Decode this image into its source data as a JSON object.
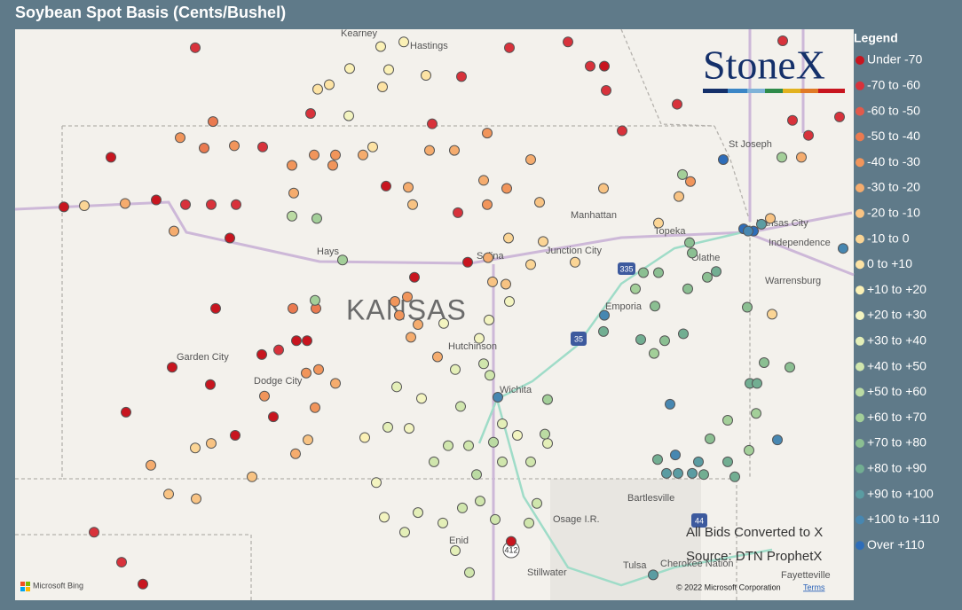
{
  "title": "Soybean Spot Basis (Cents/Bushel)",
  "logo": "StoneX",
  "legend": {
    "title": "Legend",
    "items": [
      {
        "label": "Under -70",
        "color": "#c8151f"
      },
      {
        "label": "-70 to -60",
        "color": "#d8323b"
      },
      {
        "label": "-60 to -50",
        "color": "#e25a4b"
      },
      {
        "label": "-50 to -40",
        "color": "#ea7a50"
      },
      {
        "label": "-40 to -30",
        "color": "#f1955b"
      },
      {
        "label": "-30 to -20",
        "color": "#f5ac6e"
      },
      {
        "label": "-20 to -10",
        "color": "#f8c383"
      },
      {
        "label": "-10 to 0",
        "color": "#fbd595"
      },
      {
        "label": "0 to +10",
        "color": "#fde3a4"
      },
      {
        "label": "+10 to +20",
        "color": "#fbf1b6"
      },
      {
        "label": "+20 to +30",
        "color": "#f3f4c0"
      },
      {
        "label": "+30 to +40",
        "color": "#e4efb8"
      },
      {
        "label": "+40 to +50",
        "color": "#d0e6ad"
      },
      {
        "label": "+50 to +60",
        "color": "#bbdba3"
      },
      {
        "label": "+60 to +70",
        "color": "#a3cf99"
      },
      {
        "label": "+70 to +80",
        "color": "#8bbf92"
      },
      {
        "label": "+80 to +90",
        "color": "#72ae92"
      },
      {
        "label": "+90 to +100",
        "color": "#5b9ca2"
      },
      {
        "label": "+100 to +110",
        "color": "#4787b1"
      },
      {
        "label": "Over +110",
        "color": "#2e6db9"
      }
    ]
  },
  "lonlim": [
    -102.6,
    -93.15
  ],
  "latlim": [
    35.85,
    40.8
  ],
  "points": [
    [
      -102.05,
      39.26,
      0
    ],
    [
      -101.52,
      39.69,
      0
    ],
    [
      -101.01,
      39.32,
      0
    ],
    [
      -100.68,
      39.28,
      1
    ],
    [
      -100.39,
      39.28,
      1
    ],
    [
      -100.11,
      39.28,
      1
    ],
    [
      -100.18,
      38.99,
      0
    ],
    [
      -100.34,
      38.38,
      0
    ],
    [
      -100.83,
      37.87,
      0
    ],
    [
      -100.4,
      37.72,
      0
    ],
    [
      -99.82,
      37.98,
      0
    ],
    [
      -99.43,
      38.1,
      0
    ],
    [
      -99.31,
      38.1,
      0
    ],
    [
      -99.63,
      38.02,
      1
    ],
    [
      -101.35,
      37.48,
      0
    ],
    [
      -100.12,
      37.28,
      0
    ],
    [
      -99.69,
      37.44,
      0
    ],
    [
      -101.71,
      36.44,
      1
    ],
    [
      -101.4,
      36.18,
      1
    ],
    [
      -101.16,
      35.99,
      0
    ],
    [
      -100.57,
      40.64,
      1
    ],
    [
      -99.81,
      39.78,
      1
    ],
    [
      -99.27,
      40.07,
      1
    ],
    [
      -98.42,
      39.44,
      0
    ],
    [
      -98.1,
      38.65,
      0
    ],
    [
      -97.9,
      39.98,
      1
    ],
    [
      -97.61,
      39.21,
      1
    ],
    [
      -97.5,
      38.78,
      0
    ],
    [
      -97.57,
      40.39,
      1
    ],
    [
      -97.03,
      40.64,
      1
    ],
    [
      -96.37,
      40.69,
      1
    ],
    [
      -95.94,
      40.27,
      1
    ],
    [
      -95.76,
      39.92,
      1
    ],
    [
      -95.14,
      40.15,
      1
    ],
    [
      -93.95,
      40.7,
      1
    ],
    [
      -93.66,
      39.88,
      1
    ],
    [
      -93.84,
      40.01,
      1
    ],
    [
      -93.31,
      40.04,
      1
    ],
    [
      -97.01,
      36.36,
      0
    ],
    [
      -96.12,
      40.48,
      1
    ],
    [
      -95.96,
      40.48,
      0
    ],
    [
      -100.37,
      40.0,
      3
    ],
    [
      -100.74,
      39.86,
      4
    ],
    [
      -100.47,
      39.77,
      3
    ],
    [
      -100.13,
      39.79,
      4
    ],
    [
      -99.48,
      39.62,
      4
    ],
    [
      -99.23,
      39.71,
      4
    ],
    [
      -98.99,
      39.71,
      4
    ],
    [
      -98.68,
      39.71,
      5
    ],
    [
      -99.02,
      39.62,
      4
    ],
    [
      -99.46,
      39.38,
      5
    ],
    [
      -98.17,
      39.43,
      5
    ],
    [
      -97.93,
      39.75,
      5
    ],
    [
      -97.65,
      39.75,
      5
    ],
    [
      -97.28,
      39.9,
      4
    ],
    [
      -97.28,
      39.28,
      4
    ],
    [
      -97.06,
      39.42,
      4
    ],
    [
      -97.32,
      39.49,
      5
    ],
    [
      -96.79,
      39.67,
      5
    ],
    [
      -98.12,
      39.28,
      6
    ],
    [
      -96.69,
      39.3,
      6
    ],
    [
      -95.97,
      39.42,
      6
    ],
    [
      -94.99,
      39.48,
      4
    ],
    [
      -95.12,
      39.35,
      6
    ],
    [
      -99.47,
      38.38,
      3
    ],
    [
      -99.21,
      38.38,
      3
    ],
    [
      -98.32,
      38.44,
      4
    ],
    [
      -98.18,
      38.48,
      4
    ],
    [
      -98.27,
      38.32,
      4
    ],
    [
      -98.06,
      38.24,
      5
    ],
    [
      -98.14,
      38.13,
      5
    ],
    [
      -99.32,
      37.82,
      4
    ],
    [
      -99.18,
      37.85,
      4
    ],
    [
      -98.99,
      37.73,
      5
    ],
    [
      -99.79,
      37.62,
      4
    ],
    [
      -99.22,
      37.52,
      4
    ],
    [
      -99.3,
      37.24,
      6
    ],
    [
      -99.44,
      37.12,
      5
    ],
    [
      -99.93,
      36.92,
      6
    ],
    [
      -100.39,
      37.21,
      6
    ],
    [
      -100.57,
      37.17,
      7
    ],
    [
      -101.07,
      37.02,
      5
    ],
    [
      -100.87,
      36.77,
      6
    ],
    [
      -100.56,
      36.73,
      6
    ],
    [
      -97.22,
      38.61,
      6
    ],
    [
      -97.07,
      38.59,
      6
    ],
    [
      -96.79,
      38.76,
      7
    ],
    [
      -97.27,
      38.82,
      5
    ],
    [
      -97.04,
      38.99,
      7
    ],
    [
      -96.65,
      38.96,
      7
    ],
    [
      -96.29,
      38.78,
      7
    ],
    [
      -95.35,
      39.12,
      7
    ],
    [
      -94.09,
      39.16,
      6
    ],
    [
      -93.74,
      39.69,
      5
    ],
    [
      -94.07,
      38.33,
      7
    ],
    [
      -101.82,
      39.27,
      7
    ],
    [
      -101.36,
      39.29,
      5
    ],
    [
      -100.81,
      39.05,
      5
    ],
    [
      -97.84,
      37.96,
      5
    ],
    [
      -98.48,
      40.65,
      9
    ],
    [
      -98.22,
      40.69,
      9
    ],
    [
      -98.39,
      40.45,
      9
    ],
    [
      -97.97,
      40.4,
      8
    ],
    [
      -98.83,
      40.46,
      9
    ],
    [
      -99.06,
      40.32,
      8
    ],
    [
      -99.19,
      40.28,
      8
    ],
    [
      -98.84,
      40.05,
      10
    ],
    [
      -98.46,
      40.3,
      8
    ],
    [
      -98.57,
      39.78,
      8
    ],
    [
      -97.26,
      38.28,
      10
    ],
    [
      -97.03,
      38.44,
      10
    ],
    [
      -97.77,
      38.25,
      10
    ],
    [
      -97.37,
      38.12,
      10
    ],
    [
      -97.32,
      37.9,
      12
    ],
    [
      -97.64,
      37.85,
      11
    ],
    [
      -97.25,
      37.8,
      12
    ],
    [
      -98.3,
      37.7,
      11
    ],
    [
      -98.02,
      37.6,
      10
    ],
    [
      -97.58,
      37.53,
      12
    ],
    [
      -98.16,
      37.34,
      10
    ],
    [
      -98.4,
      37.35,
      11
    ],
    [
      -98.66,
      37.26,
      9
    ],
    [
      -97.88,
      37.05,
      12
    ],
    [
      -97.72,
      37.19,
      12
    ],
    [
      -97.49,
      37.19,
      12
    ],
    [
      -97.11,
      37.38,
      11
    ],
    [
      -96.94,
      37.28,
      10
    ],
    [
      -96.6,
      37.21,
      11
    ],
    [
      -97.11,
      37.05,
      12
    ],
    [
      -96.79,
      37.05,
      12
    ],
    [
      -98.53,
      36.87,
      10
    ],
    [
      -98.44,
      36.57,
      10
    ],
    [
      -98.21,
      36.44,
      11
    ],
    [
      -98.06,
      36.61,
      11
    ],
    [
      -97.78,
      36.52,
      11
    ],
    [
      -97.56,
      36.65,
      12
    ],
    [
      -97.36,
      36.71,
      12
    ],
    [
      -97.19,
      36.55,
      12
    ],
    [
      -96.72,
      36.69,
      12
    ],
    [
      -97.64,
      36.28,
      11
    ],
    [
      -97.48,
      36.09,
      12
    ],
    [
      -96.81,
      36.52,
      12
    ],
    [
      -99.48,
      39.18,
      13
    ],
    [
      -99.2,
      39.16,
      14
    ],
    [
      -98.91,
      38.8,
      14
    ],
    [
      -99.22,
      38.45,
      14
    ],
    [
      -96.6,
      37.59,
      14
    ],
    [
      -96.63,
      37.29,
      13
    ],
    [
      -97.21,
      37.22,
      13
    ],
    [
      -97.4,
      36.94,
      13
    ],
    [
      -95.52,
      38.69,
      15
    ],
    [
      -95.35,
      38.69,
      15
    ],
    [
      -95.61,
      38.55,
      14
    ],
    [
      -95.39,
      38.4,
      15
    ],
    [
      -95.02,
      38.55,
      15
    ],
    [
      -94.8,
      38.65,
      15
    ],
    [
      -94.7,
      38.7,
      16
    ],
    [
      -95.0,
      38.95,
      15
    ],
    [
      -94.97,
      38.86,
      15
    ],
    [
      -95.08,
      39.54,
      14
    ],
    [
      -93.96,
      39.69,
      14
    ],
    [
      -94.35,
      38.39,
      15
    ],
    [
      -95.97,
      38.18,
      16
    ],
    [
      -95.55,
      38.11,
      16
    ],
    [
      -95.28,
      38.1,
      15
    ],
    [
      -95.07,
      38.16,
      16
    ],
    [
      -95.4,
      37.99,
      14
    ],
    [
      -94.16,
      37.91,
      15
    ],
    [
      -94.32,
      37.73,
      16
    ],
    [
      -94.24,
      37.73,
      16
    ],
    [
      -93.87,
      37.87,
      15
    ],
    [
      -94.25,
      37.47,
      14
    ],
    [
      -94.57,
      37.41,
      14
    ],
    [
      -94.77,
      37.25,
      15
    ],
    [
      -94.33,
      37.15,
      14
    ],
    [
      -94.57,
      37.05,
      16
    ],
    [
      -95.36,
      37.07,
      16
    ],
    [
      -94.49,
      36.92,
      16
    ],
    [
      -95.13,
      36.95,
      17
    ],
    [
      -94.97,
      36.95,
      17
    ],
    [
      -94.84,
      36.94,
      16
    ],
    [
      -95.26,
      36.95,
      17
    ],
    [
      -94.9,
      37.05,
      17
    ],
    [
      -94.62,
      39.67,
      19
    ],
    [
      -94.39,
      39.07,
      19
    ],
    [
      -94.28,
      39.05,
      19
    ],
    [
      -94.34,
      39.05,
      18
    ],
    [
      -94.19,
      39.11,
      17
    ],
    [
      -95.96,
      38.32,
      18
    ],
    [
      -97.16,
      37.61,
      18
    ],
    [
      -95.22,
      37.55,
      18
    ],
    [
      -94.01,
      37.24,
      18
    ],
    [
      -95.16,
      37.11,
      18
    ],
    [
      -95.41,
      36.07,
      17
    ],
    [
      -93.27,
      38.9,
      18
    ]
  ],
  "map": {
    "labels": [
      "Kearney",
      "Hastings",
      "St Joseph",
      "Manhattan",
      "Kansas City",
      "Independence",
      "Topeka",
      "Salina",
      "Junction City",
      "Hays",
      "Olathe",
      "Warrensburg",
      "KANSAS",
      "Emporia",
      "Hutchinson",
      "Garden City",
      "Dodge City",
      "Wichita",
      "Bartlesville",
      "Osage I.R.",
      "Enid",
      "Tulsa",
      "Cherokee Nation",
      "Stillwater",
      "Fayetteville",
      "335",
      "35",
      "412",
      "44"
    ]
  },
  "notes": [
    "All Bids Converted to X",
    "Source: DTN ProphetX"
  ],
  "credits": {
    "bing": "Microsoft Bing",
    "copyright": "© 2022 Microsoft Corporation",
    "terms": "Terms"
  }
}
